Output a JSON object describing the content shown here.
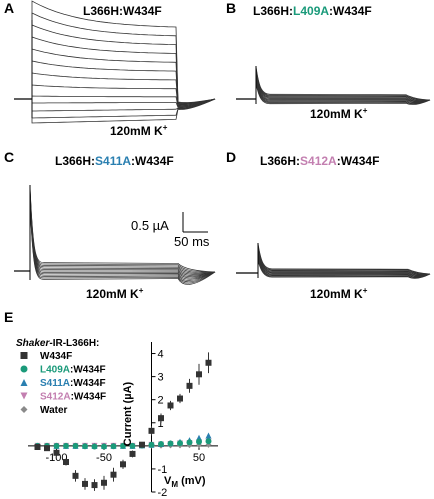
{
  "figure": {
    "panel_letters": [
      "A",
      "B",
      "C",
      "D",
      "E"
    ],
    "condition_prefix": "120mM K",
    "condition_sup": "+",
    "scalebar": {
      "current": "0.5 µA",
      "time": "50 ms"
    },
    "trace_panels": [
      {
        "id": "A",
        "title_parts": [
          {
            "t": "L366H:W434F",
            "c": "#000000"
          }
        ]
      },
      {
        "id": "B",
        "title_parts": [
          {
            "t": "L366H:",
            "c": "#000000"
          },
          {
            "t": "L409A",
            "c": "#1a9a7a"
          },
          {
            "t": ":W434F",
            "c": "#000000"
          }
        ]
      },
      {
        "id": "C",
        "title_parts": [
          {
            "t": "L366H:",
            "c": "#000000"
          },
          {
            "t": "S411A",
            "c": "#2a7fb0"
          },
          {
            "t": ":W434F",
            "c": "#000000"
          }
        ]
      },
      {
        "id": "D",
        "title_parts": [
          {
            "t": "L366H:",
            "c": "#000000"
          },
          {
            "t": "S412A",
            "c": "#c37fb0"
          },
          {
            "t": ":W434F",
            "c": "#000000"
          }
        ]
      }
    ]
  },
  "legend": {
    "title_italic": "Shaker",
    "title_rest": "-IR-L366H:",
    "entries": [
      {
        "label": "W434F",
        "color": "#333333",
        "marker": "square",
        "label_color": "#000000"
      },
      {
        "label_parts": [
          {
            "t": "L409A",
            "c": "#1a9a7a"
          },
          {
            "t": ":W434F",
            "c": "#000000"
          }
        ],
        "color": "#1a9a7a",
        "marker": "circle"
      },
      {
        "label_parts": [
          {
            "t": "S411A",
            "c": "#2a7fb0"
          },
          {
            "t": ":W434F",
            "c": "#000000"
          }
        ],
        "color": "#2a7fb0",
        "marker": "triangle-up"
      },
      {
        "label_parts": [
          {
            "t": "S412A",
            "c": "#c37fb0"
          },
          {
            "t": ":W434F",
            "c": "#000000"
          }
        ],
        "color": "#c37fb0",
        "marker": "triangle-down"
      },
      {
        "label": "Water",
        "color": "#8a8a8a",
        "marker": "diamond",
        "label_color": "#8a8a8a"
      }
    ]
  },
  "chart_data": {
    "type": "scatter",
    "ylabel": "Current (µA)",
    "xlabel_main": "V",
    "xlabel_sub": "M",
    "xlabel_unit": " (mV)",
    "xlim": [
      -130,
      70
    ],
    "ylim": [
      -2,
      4.5
    ],
    "x_ticks": [
      -100,
      -50,
      50
    ],
    "y_ticks": [
      -2,
      -1,
      1,
      2,
      3,
      4
    ],
    "x": [
      -120,
      -110,
      -100,
      -90,
      -80,
      -70,
      -60,
      -50,
      -40,
      -30,
      -20,
      -10,
      0,
      10,
      20,
      30,
      40,
      50,
      60
    ],
    "series": [
      {
        "name": "W434F",
        "values": [
          -0.05,
          -0.1,
          -0.3,
          -0.7,
          -1.3,
          -1.65,
          -1.7,
          -1.6,
          -1.25,
          -0.8,
          -0.35,
          0.05,
          0.65,
          1.2,
          1.75,
          2.05,
          2.6,
          3.1,
          3.6
        ],
        "errors": [
          0.05,
          0.05,
          0.1,
          0.15,
          0.25,
          0.25,
          0.25,
          0.3,
          0.3,
          0.2,
          0.15,
          0.1,
          0.2,
          0.2,
          0.2,
          0.2,
          0.3,
          0.45,
          0.45
        ]
      },
      {
        "name": "L409A:W434F",
        "values": [
          0,
          0,
          0,
          0,
          0,
          -0.02,
          -0.03,
          -0.03,
          -0.02,
          0,
          0,
          0.02,
          0.05,
          0.08,
          0.1,
          0.12,
          0.15,
          0.18,
          0.2
        ]
      },
      {
        "name": "S411A:W434F",
        "values": [
          0,
          0,
          0,
          0,
          0,
          0,
          0,
          0,
          0,
          0,
          0,
          0.02,
          0.05,
          0.08,
          0.12,
          0.18,
          0.25,
          0.35,
          0.45
        ]
      },
      {
        "name": "S412A:W434F",
        "values": [
          0,
          0,
          0,
          0,
          0,
          0,
          0,
          0,
          0,
          0,
          0,
          0.02,
          0.04,
          0.06,
          0.08,
          0.1,
          0.12,
          0.15,
          0.18
        ]
      },
      {
        "name": "Water",
        "values": [
          0,
          0,
          0,
          0,
          0,
          0,
          0,
          0,
          0,
          0,
          0,
          0,
          0.01,
          0.01,
          0.02,
          0.02,
          0.03,
          0.03,
          0.04
        ]
      }
    ]
  }
}
